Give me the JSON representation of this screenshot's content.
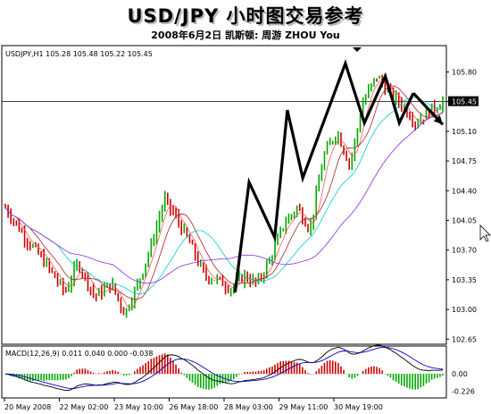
{
  "header": {
    "title": "USD/JPY 小时图交易参考",
    "subtitle": "2008年6月2日   凯斯顿:  周游  ZHOU You"
  },
  "chart_data": [
    {
      "type": "candlestick",
      "symbol_label": "USDJPY,H1  105.28 105.48 105.22 105.45",
      "last_price_label": "105.45",
      "y_ticks": [
        "105.80",
        "105.45",
        "105.10",
        "104.75",
        "104.40",
        "104.05",
        "103.70",
        "103.35",
        "103.00",
        "102.65"
      ],
      "ylim": [
        102.6,
        106.1
      ],
      "x_ticks": [
        "20 May 2008",
        "22 May 02:00",
        "23 May 10:00",
        "26 May 18:00",
        "28 May 03:00",
        "29 May 11:00",
        "30 May 19:00"
      ],
      "colors": {
        "up": "#00aa00",
        "down": "#cc0000",
        "ma_fast": "#ff5555",
        "ma_mid": "#aa2222",
        "ma_slow": "#00cccc",
        "ma_long": "#8a2be2",
        "annotation": "#000000"
      },
      "price_path": [
        [
          0,
          104.2
        ],
        [
          6,
          103.85
        ],
        [
          12,
          103.55
        ],
        [
          18,
          103.2
        ],
        [
          22,
          103.55
        ],
        [
          27,
          103.15
        ],
        [
          32,
          103.3
        ],
        [
          36,
          102.95
        ],
        [
          40,
          103.3
        ],
        [
          44,
          103.75
        ],
        [
          48,
          104.3
        ],
        [
          52,
          104.05
        ],
        [
          56,
          103.75
        ],
        [
          60,
          103.4
        ],
        [
          64,
          103.35
        ],
        [
          68,
          103.25
        ],
        [
          72,
          103.4
        ],
        [
          76,
          103.3
        ],
        [
          80,
          103.6
        ],
        [
          84,
          104.0
        ],
        [
          88,
          104.2
        ],
        [
          92,
          103.95
        ],
        [
          96,
          104.8
        ],
        [
          100,
          105.1
        ],
        [
          104,
          104.7
        ],
        [
          108,
          105.45
        ],
        [
          112,
          105.75
        ],
        [
          116,
          105.55
        ],
        [
          120,
          105.4
        ],
        [
          124,
          105.2
        ],
        [
          128,
          105.35
        ],
        [
          132,
          105.45
        ]
      ],
      "annotation_path": [
        [
          83.5,
          103.2
        ],
        [
          88.6,
          104.5
        ],
        [
          97.9,
          103.85
        ],
        [
          102.5,
          105.35
        ],
        [
          108.1,
          104.55
        ],
        [
          123.6,
          105.9
        ],
        [
          130.5,
          105.2
        ],
        [
          138.1,
          105.75
        ],
        [
          143.2,
          105.2
        ],
        [
          148.3,
          105.55
        ]
      ],
      "annotation_arrow_to": [
        159,
        105.18
      ]
    },
    {
      "type": "bar",
      "label": "MACD(12,26,9) 0.011 0.040 0.000 -0.038",
      "y_ticks": [
        "0.00",
        "-0.226"
      ],
      "ylim": [
        -0.3,
        0.35
      ],
      "signal_color": "#0000cc",
      "main_color": "#000000"
    }
  ]
}
